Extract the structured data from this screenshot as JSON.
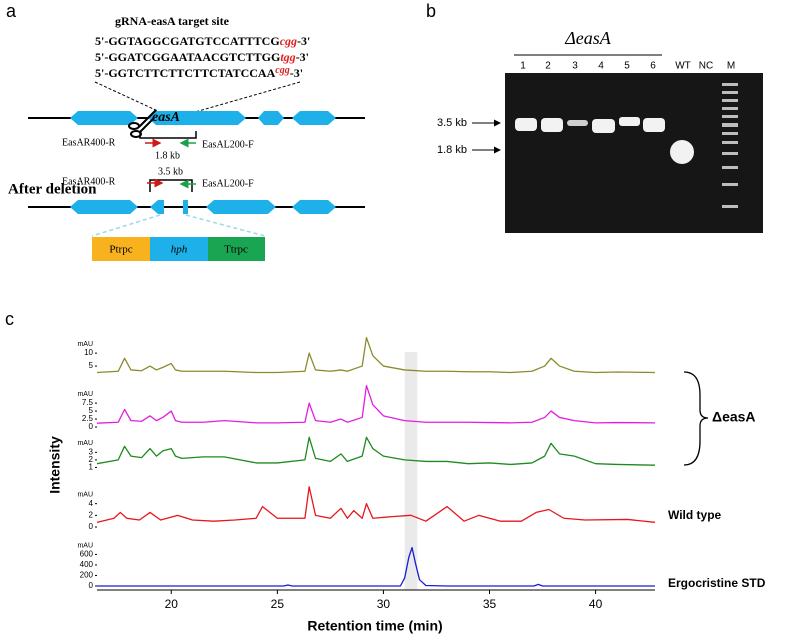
{
  "panel_a": {
    "label": "a",
    "title": "gRNA-easA target site",
    "sequences": [
      {
        "seq": "5'-GGTAGGCGATGTCCATTTCG",
        "pam": "cgg",
        "end": "-3'"
      },
      {
        "seq": "5'-GGATCGGAATAACGTCTTGG",
        "pam": "tgg",
        "end": "-3'"
      },
      {
        "seq": "5'-GGTCTTCTTCTTCTATCCAA",
        "pam": "cgg",
        "end": "-3'"
      }
    ],
    "gene": "easA",
    "primer_r": "EasAR400-R",
    "primer_f": "EasAL200-F",
    "wt_size": "1.8 kb",
    "after_title": "After deletion",
    "del_size": "3.5 kb",
    "primer_r2": "EasAR400-R",
    "primer_f2": "EasAL200-F",
    "cassette": [
      "Ptrpc",
      "hph",
      "Ttrpc"
    ]
  },
  "panel_b": {
    "label": "b",
    "group": "ΔeasA",
    "lanes": [
      "1",
      "2",
      "3",
      "4",
      "5",
      "6",
      "WT",
      "NC",
      "M"
    ],
    "marker_35": "3.5 kb",
    "marker_18": "1.8 kb"
  },
  "chart_data": {
    "type": "line",
    "label": "c",
    "xlabel": "Retention time (min)",
    "ylabel": "Intensity",
    "xlim": [
      16.5,
      42.8
    ],
    "xticks": [
      20,
      25,
      30,
      35,
      40
    ],
    "highlight": [
      31.0,
      31.6
    ],
    "group_label": "ΔeasA",
    "series": [
      {
        "color": "#8b8b2c",
        "unit": "mAU",
        "ylim": [
          0,
          17
        ],
        "yticks": [
          5,
          10
        ],
        "x": [
          16.5,
          17.5,
          17.8,
          18.1,
          18.6,
          19.0,
          19.3,
          19.6,
          20.0,
          20.2,
          20.5,
          21.5,
          22.5,
          24,
          25,
          26.3,
          26.5,
          26.8,
          27.5,
          28.0,
          28.3,
          29.0,
          29.2,
          29.5,
          30,
          31,
          32,
          33,
          34,
          35,
          36,
          37,
          37.6,
          37.9,
          38.3,
          39,
          40,
          41,
          42.8
        ],
        "values": [
          2.5,
          3,
          8,
          3.5,
          3.2,
          5,
          3.5,
          4.5,
          6,
          3.5,
          3,
          3,
          3,
          2.5,
          2.5,
          3,
          10,
          3.5,
          3,
          3.5,
          3,
          5,
          16,
          9,
          5,
          3.5,
          3,
          3,
          2.8,
          2.8,
          2.5,
          3,
          5,
          8,
          5,
          3,
          2.5,
          2.7,
          2.5
        ]
      },
      {
        "color": "#e21de3",
        "unit": "mAU",
        "ylim": [
          0,
          13.5
        ],
        "yticks": [
          0,
          2.5,
          5,
          7.5
        ],
        "x": [
          16.5,
          17.5,
          17.8,
          18.1,
          18.6,
          19.0,
          19.3,
          19.6,
          20.0,
          20.2,
          20.5,
          21.5,
          22.5,
          24,
          25,
          26.3,
          26.5,
          26.8,
          27.5,
          28.0,
          28.3,
          29.0,
          29.2,
          29.5,
          30,
          31,
          32,
          33,
          34,
          35,
          36,
          37,
          37.6,
          37.9,
          38.3,
          39,
          40,
          41,
          42.8
        ],
        "values": [
          1.2,
          1.5,
          5.5,
          2,
          1.8,
          3.5,
          2,
          3,
          5,
          2,
          1.5,
          1.5,
          2,
          1.3,
          1.3,
          1.5,
          7.5,
          2,
          1.5,
          2.5,
          1.5,
          3,
          13,
          7,
          3.5,
          2,
          1.5,
          1.5,
          1.5,
          1.4,
          1.3,
          1.5,
          3,
          5,
          3,
          2,
          1.3,
          1.4,
          1.3
        ]
      },
      {
        "color": "#1f8a1f",
        "unit": "mAU",
        "ylim": [
          0,
          5.3
        ],
        "yticks": [
          1,
          2,
          3
        ],
        "x": [
          16.5,
          17.5,
          17.8,
          18.1,
          18.6,
          19.0,
          19.3,
          19.6,
          20.0,
          20.2,
          20.5,
          21.5,
          22.5,
          24,
          25,
          26.3,
          26.5,
          26.8,
          27.5,
          28.0,
          28.3,
          29.0,
          29.2,
          29.5,
          30,
          31,
          32,
          33,
          34,
          35,
          36,
          37,
          37.6,
          37.9,
          38.3,
          39,
          40,
          41,
          42.8
        ],
        "values": [
          1.5,
          2,
          3.8,
          2.5,
          2.3,
          3.5,
          2.5,
          3.2,
          3.5,
          2.5,
          2.2,
          2.4,
          2.4,
          1.6,
          1.6,
          2,
          5,
          2.2,
          1.8,
          2.8,
          1.8,
          2.5,
          5,
          3.5,
          2.5,
          2,
          1.8,
          1.8,
          1.5,
          1.6,
          1.4,
          1.6,
          2.5,
          4.2,
          2.8,
          2.5,
          1.5,
          1.4,
          1.3
        ]
      },
      {
        "name": "Wild type",
        "color": "#e8161c",
        "unit": "mAU",
        "ylim": [
          0,
          7.2
        ],
        "yticks": [
          0,
          2,
          4
        ],
        "x": [
          16.5,
          17.3,
          17.6,
          17.9,
          18.5,
          19.0,
          19.5,
          20.3,
          21,
          22,
          23,
          24,
          24.3,
          25,
          26.3,
          26.5,
          26.8,
          27.5,
          28.0,
          28.3,
          28.6,
          29.0,
          29.2,
          29.5,
          30.5,
          31.3,
          32,
          33,
          33.8,
          34.5,
          35.5,
          36.5,
          37.2,
          37.8,
          38.5,
          39.5,
          41.5,
          42.8
        ],
        "values": [
          0.8,
          1.5,
          2.5,
          1.5,
          1.2,
          2.5,
          1.2,
          2,
          1.2,
          1,
          1.2,
          1.5,
          3.5,
          1.5,
          1.5,
          6.9,
          2,
          1.5,
          3.2,
          1.5,
          2.8,
          1.5,
          4,
          1.5,
          1.8,
          2,
          1,
          3.5,
          1,
          2,
          1,
          1,
          2.5,
          3,
          1.5,
          1.2,
          1.3,
          0.8
        ]
      },
      {
        "name": "Ergocristine STD",
        "color": "#1a1ad8",
        "unit": "mAU",
        "ylim": [
          0,
          760
        ],
        "yticks": [
          0,
          200,
          400,
          600
        ],
        "x": [
          16.5,
          25.3,
          25.5,
          25.7,
          30.8,
          31.0,
          31.2,
          31.35,
          31.5,
          31.7,
          32,
          33,
          37.1,
          37.3,
          37.5,
          42.8
        ],
        "values": [
          0,
          0,
          20,
          0,
          0,
          150,
          550,
          730,
          450,
          120,
          10,
          0,
          0,
          30,
          0,
          0
        ]
      }
    ]
  }
}
